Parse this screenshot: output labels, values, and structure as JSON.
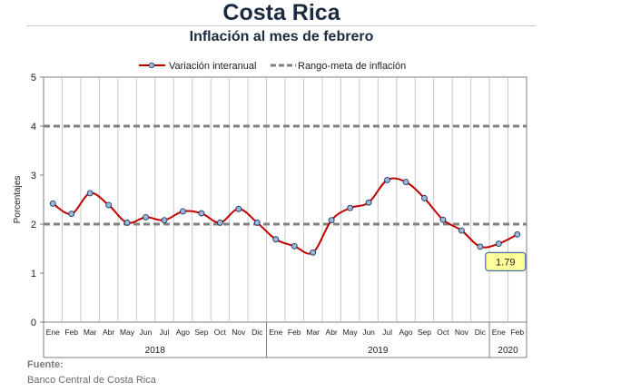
{
  "header": {
    "title": "Costa Rica",
    "subtitle": "Inflación al mes de febrero"
  },
  "chart_data": {
    "type": "line",
    "title": "Inflación al mes de febrero",
    "ylabel": "Porcentajes",
    "ylim": [
      0,
      5
    ],
    "yticks": [
      0,
      1,
      2,
      3,
      4,
      5
    ],
    "grid": true,
    "legend_position": "top",
    "categories": [
      "Ene",
      "Feb",
      "Mar",
      "Abr",
      "May",
      "Jun",
      "Jul",
      "Ago",
      "Sep",
      "Oct",
      "Nov",
      "Dic",
      "Ene",
      "Feb",
      "Mar",
      "Abr",
      "May",
      "Jun",
      "Jul",
      "Ago",
      "Sep",
      "Oct",
      "Nov",
      "Dic",
      "Ene",
      "Feb"
    ],
    "year_groups": [
      {
        "label": "2018",
        "start": 0,
        "end": 11
      },
      {
        "label": "2019",
        "start": 12,
        "end": 23
      },
      {
        "label": "2020",
        "start": 24,
        "end": 25
      }
    ],
    "series": [
      {
        "name": "Variación interanual",
        "color": "#c00000",
        "marker_fill": "#9db8d6",
        "values": [
          2.42,
          2.21,
          2.63,
          2.39,
          2.03,
          2.14,
          2.08,
          2.26,
          2.22,
          2.03,
          2.31,
          2.03,
          1.69,
          1.55,
          1.42,
          2.08,
          2.33,
          2.44,
          2.9,
          2.86,
          2.53,
          2.09,
          1.87,
          1.54,
          1.6,
          1.79
        ]
      }
    ],
    "target_range": {
      "name": "Rango-meta de inflación",
      "lower": 2,
      "upper": 4,
      "color": "#808080"
    },
    "annotation": {
      "text": "1.79",
      "index": 25,
      "fill": "#ffff99",
      "border": "#4a6ea8"
    }
  },
  "footer": {
    "source_label": "Fuente:",
    "source_value": "Banco Central de Costa Rica"
  }
}
